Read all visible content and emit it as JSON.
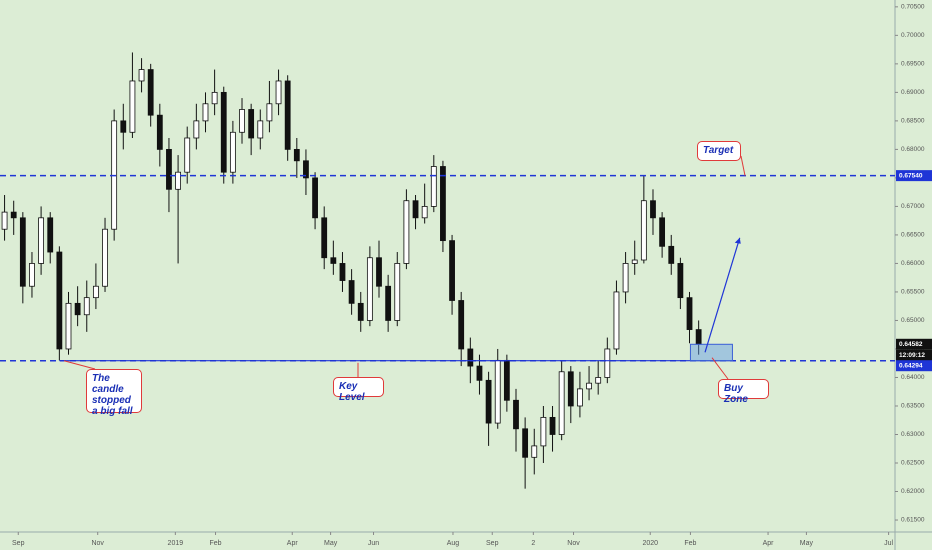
{
  "chart_data": {
    "type": "candlestick",
    "open": [
      0.666,
      0.669,
      0.668,
      0.656,
      0.66,
      0.668,
      0.662,
      0.645,
      0.653,
      0.651,
      0.654,
      0.656,
      0.666,
      0.685,
      0.683,
      0.692,
      0.694,
      0.686,
      0.68,
      0.673,
      0.676,
      0.682,
      0.685,
      0.688,
      0.69,
      0.676,
      0.683,
      0.687,
      0.682,
      0.685,
      0.688,
      0.692,
      0.68,
      0.678,
      0.675,
      0.668,
      0.661,
      0.66,
      0.657,
      0.653,
      0.65,
      0.661,
      0.656,
      0.65,
      0.66,
      0.671,
      0.668,
      0.67,
      0.677,
      0.664,
      0.6535,
      0.645,
      0.642,
      0.6395,
      0.632,
      0.643,
      0.636,
      0.631,
      0.626,
      0.628,
      0.633,
      0.63,
      0.641,
      0.635,
      0.638,
      0.639,
      0.64,
      0.645,
      0.655,
      0.66,
      0.6606,
      0.671,
      0.668,
      0.663,
      0.66,
      0.654,
      0.6484
    ],
    "high": [
      0.672,
      0.671,
      0.669,
      0.662,
      0.67,
      0.669,
      0.663,
      0.655,
      0.656,
      0.657,
      0.66,
      0.668,
      0.687,
      0.688,
      0.697,
      0.696,
      0.695,
      0.688,
      0.682,
      0.679,
      0.684,
      0.688,
      0.69,
      0.694,
      0.691,
      0.685,
      0.689,
      0.688,
      0.687,
      0.692,
      0.694,
      0.693,
      0.682,
      0.68,
      0.676,
      0.67,
      0.664,
      0.662,
      0.659,
      0.655,
      0.663,
      0.664,
      0.658,
      0.662,
      0.673,
      0.672,
      0.674,
      0.679,
      0.678,
      0.665,
      0.655,
      0.647,
      0.644,
      0.641,
      0.645,
      0.644,
      0.638,
      0.633,
      0.631,
      0.635,
      0.635,
      0.643,
      0.642,
      0.641,
      0.642,
      0.643,
      0.647,
      0.657,
      0.662,
      0.664,
      0.6754,
      0.673,
      0.669,
      0.665,
      0.661,
      0.655,
      0.65
    ],
    "low": [
      0.664,
      0.665,
      0.653,
      0.654,
      0.658,
      0.66,
      0.643,
      0.644,
      0.649,
      0.648,
      0.652,
      0.655,
      0.664,
      0.68,
      0.682,
      0.69,
      0.684,
      0.677,
      0.669,
      0.66,
      0.674,
      0.68,
      0.683,
      0.686,
      0.674,
      0.674,
      0.681,
      0.679,
      0.68,
      0.683,
      0.686,
      0.678,
      0.675,
      0.672,
      0.666,
      0.659,
      0.658,
      0.655,
      0.651,
      0.648,
      0.649,
      0.654,
      0.648,
      0.649,
      0.659,
      0.666,
      0.667,
      0.669,
      0.662,
      0.651,
      0.642,
      0.639,
      0.637,
      0.628,
      0.631,
      0.634,
      0.627,
      0.6205,
      0.623,
      0.625,
      0.627,
      0.629,
      0.632,
      0.633,
      0.636,
      0.637,
      0.639,
      0.644,
      0.653,
      0.658,
      0.66,
      0.665,
      0.661,
      0.658,
      0.652,
      0.646,
      0.644
    ],
    "close": [
      0.669,
      0.668,
      0.656,
      0.66,
      0.668,
      0.662,
      0.645,
      0.653,
      0.651,
      0.654,
      0.656,
      0.666,
      0.685,
      0.683,
      0.692,
      0.694,
      0.686,
      0.68,
      0.673,
      0.676,
      0.682,
      0.685,
      0.688,
      0.69,
      0.676,
      0.683,
      0.687,
      0.682,
      0.685,
      0.688,
      0.692,
      0.68,
      0.678,
      0.675,
      0.668,
      0.661,
      0.66,
      0.657,
      0.653,
      0.65,
      0.661,
      0.656,
      0.65,
      0.66,
      0.671,
      0.668,
      0.67,
      0.677,
      0.664,
      0.6535,
      0.645,
      0.642,
      0.6395,
      0.632,
      0.643,
      0.636,
      0.631,
      0.626,
      0.628,
      0.633,
      0.63,
      0.641,
      0.635,
      0.638,
      0.639,
      0.64,
      0.645,
      0.655,
      0.66,
      0.6606,
      0.671,
      0.668,
      0.663,
      0.66,
      0.654,
      0.6484,
      0.64582
    ],
    "close_label": "0.64582",
    "countdown": "12:09:12",
    "xlim": [
      -0.5,
      97.5
    ],
    "ylim": [
      0.6129,
      0.7062
    ],
    "xticks": [
      {
        "value": 1.5,
        "label": "Sep"
      },
      {
        "value": 10.2,
        "label": "Nov"
      },
      {
        "value": 18.7,
        "label": "2019"
      },
      {
        "value": 23.1,
        "label": "Feb"
      },
      {
        "value": 31.5,
        "label": "Apr"
      },
      {
        "value": 35.7,
        "label": "May"
      },
      {
        "value": 40.4,
        "label": "Jun"
      },
      {
        "value": 49.1,
        "label": "Aug"
      },
      {
        "value": 53.4,
        "label": "Sep"
      },
      {
        "value": 57.9,
        "label": "2"
      },
      {
        "value": 62.3,
        "label": "Nov"
      },
      {
        "value": 70.7,
        "label": "2020"
      },
      {
        "value": 75.1,
        "label": "Feb"
      },
      {
        "value": 83.6,
        "label": "Apr"
      },
      {
        "value": 87.8,
        "label": "May"
      },
      {
        "value": 96.8,
        "label": "Jul"
      }
    ],
    "yticks": [
      {
        "value": 0.615,
        "label": "0.61500"
      },
      {
        "value": 0.62,
        "label": "0.62000"
      },
      {
        "value": 0.625,
        "label": "0.62500"
      },
      {
        "value": 0.63,
        "label": "0.63000"
      },
      {
        "value": 0.635,
        "label": "0.63500"
      },
      {
        "value": 0.64,
        "label": "0.64000"
      },
      {
        "value": 0.645,
        "label": "0.64500"
      },
      {
        "value": 0.65,
        "label": "0.65000"
      },
      {
        "value": 0.655,
        "label": "0.65500"
      },
      {
        "value": 0.66,
        "label": "0.66000"
      },
      {
        "value": 0.665,
        "label": "0.66500"
      },
      {
        "value": 0.67,
        "label": "0.67000"
      },
      {
        "value": 0.675,
        "label": "0.67500"
      },
      {
        "value": 0.68,
        "label": "0.68000"
      },
      {
        "value": 0.685,
        "label": "0.68500"
      },
      {
        "value": 0.69,
        "label": "0.69000"
      },
      {
        "value": 0.695,
        "label": "0.69500"
      },
      {
        "value": 0.7,
        "label": "0.70000"
      },
      {
        "value": 0.705,
        "label": "0.70500"
      }
    ],
    "hlines": [
      {
        "value": 0.6754,
        "label": "0.67540",
        "color": "#1f35d6"
      },
      {
        "value": 0.64294,
        "label": "0.64294",
        "color": "#1f35d6"
      }
    ],
    "annotations": [
      "Target",
      "The candle stopped a big fall",
      "Key Level",
      "Buy Zone"
    ],
    "background": "#dcedd5",
    "up_color": "#ffffff",
    "down_color": "#111111"
  }
}
